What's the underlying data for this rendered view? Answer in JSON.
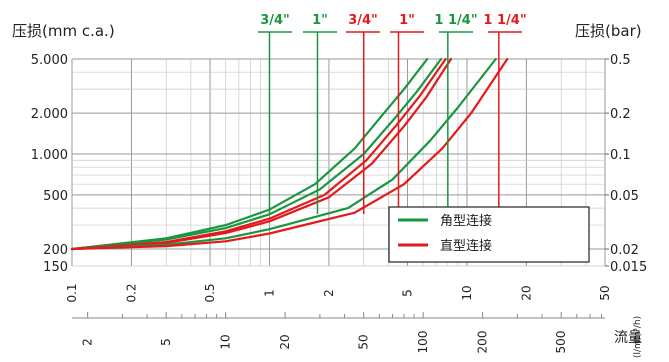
{
  "chart_data": {
    "type": "line",
    "title": "",
    "ylabel_left": "压损(mm c.a.)",
    "ylabel_right": "压损(bar)",
    "x_axis_label": "流量",
    "x_units_top": "(m³/h)",
    "x_units_bottom": "(l/m)",
    "y_scale": "log",
    "x_scale": "log",
    "ylim_mm": [
      150,
      5000
    ],
    "x_top_range_m3h": [
      0.1,
      50
    ],
    "y_left_ticks": [
      "5.000",
      "2.000",
      "1.000",
      "500",
      "200",
      "150"
    ],
    "y_left_tick_values": [
      5000,
      2000,
      1000,
      500,
      200,
      150
    ],
    "y_right_ticks": [
      "0.5",
      "0.2",
      "0.1",
      "0.05",
      "0.02",
      "0.015"
    ],
    "y_right_tick_values": [
      5000,
      2000,
      1000,
      500,
      200,
      150
    ],
    "x_top_ticks": [
      "0.1",
      "0.2",
      "0.5",
      "1",
      "2",
      "5",
      "10",
      "20",
      "50"
    ],
    "x_top_tick_values": [
      0.1,
      0.2,
      0.5,
      1,
      2,
      5,
      10,
      20,
      50
    ],
    "x_bottom_ticks": [
      "2",
      "5",
      "10",
      "20",
      "50",
      "100",
      "200",
      "500"
    ],
    "x_bottom_tick_values_m3h": [
      0.12,
      0.3,
      0.6,
      1.2,
      3,
      6,
      12,
      30
    ],
    "legend": [
      {
        "label": "角型连接",
        "color": "#1a9641"
      },
      {
        "label": "直型连接",
        "color": "#e31a1c"
      }
    ],
    "legend_placement": "bottom-right",
    "series": [
      {
        "name": "3/4\"",
        "group": "green",
        "color": "#1a9641",
        "x": [
          0.1,
          0.3,
          0.6,
          1.0,
          1.7,
          2.7,
          3.8,
          4.8,
          6.3
        ],
        "y": [
          200,
          240,
          300,
          390,
          600,
          1100,
          2000,
          3000,
          5000
        ]
      },
      {
        "name": "1\"",
        "group": "green",
        "color": "#1a9641",
        "x": [
          0.1,
          0.3,
          0.6,
          1.0,
          1.8,
          3.0,
          4.4,
          5.6,
          7.4
        ],
        "y": [
          200,
          235,
          285,
          360,
          550,
          1000,
          1900,
          2900,
          5000
        ]
      },
      {
        "name": "3/4\"",
        "group": "red",
        "color": "#e31a1c",
        "x": [
          0.1,
          0.3,
          0.6,
          1.0,
          1.9,
          3.1,
          4.5,
          5.8,
          7.8
        ],
        "y": [
          200,
          225,
          270,
          335,
          500,
          900,
          1700,
          2700,
          5000
        ]
      },
      {
        "name": "1\"",
        "group": "red",
        "color": "#e31a1c",
        "x": [
          0.1,
          0.3,
          0.6,
          1.0,
          2.0,
          3.3,
          4.8,
          6.2,
          8.3
        ],
        "y": [
          200,
          222,
          262,
          320,
          480,
          850,
          1600,
          2600,
          5000
        ]
      },
      {
        "name": "1 1/4\"",
        "group": "green",
        "color": "#1a9641",
        "x": [
          0.1,
          0.3,
          0.6,
          1.0,
          2.5,
          4.2,
          6.5,
          9.0,
          14.0
        ],
        "y": [
          200,
          215,
          240,
          280,
          400,
          650,
          1250,
          2200,
          5000
        ]
      },
      {
        "name": "1 1/4\"",
        "group": "red",
        "color": "#e31a1c",
        "x": [
          0.1,
          0.3,
          0.6,
          1.0,
          2.7,
          4.8,
          7.5,
          10.5,
          16.0
        ],
        "y": [
          200,
          210,
          228,
          260,
          370,
          600,
          1100,
          2000,
          5000
        ]
      }
    ],
    "size_labels": [
      {
        "text": "3/4\"",
        "color": "#1a9641",
        "pointer_x": 1.0
      },
      {
        "text": "1\"",
        "color": "#1a9641",
        "pointer_x": 1.75
      },
      {
        "text": "3/4\"",
        "color": "#e31a1c",
        "pointer_x": 3.0
      },
      {
        "text": "1\"",
        "color": "#e31a1c",
        "pointer_x": 4.5
      },
      {
        "text": "1 1/4\"",
        "color": "#1a9641",
        "pointer_x": 8.0
      },
      {
        "text": "1 1/4\"",
        "color": "#e31a1c",
        "pointer_x": 14.5
      }
    ],
    "grid": true
  }
}
